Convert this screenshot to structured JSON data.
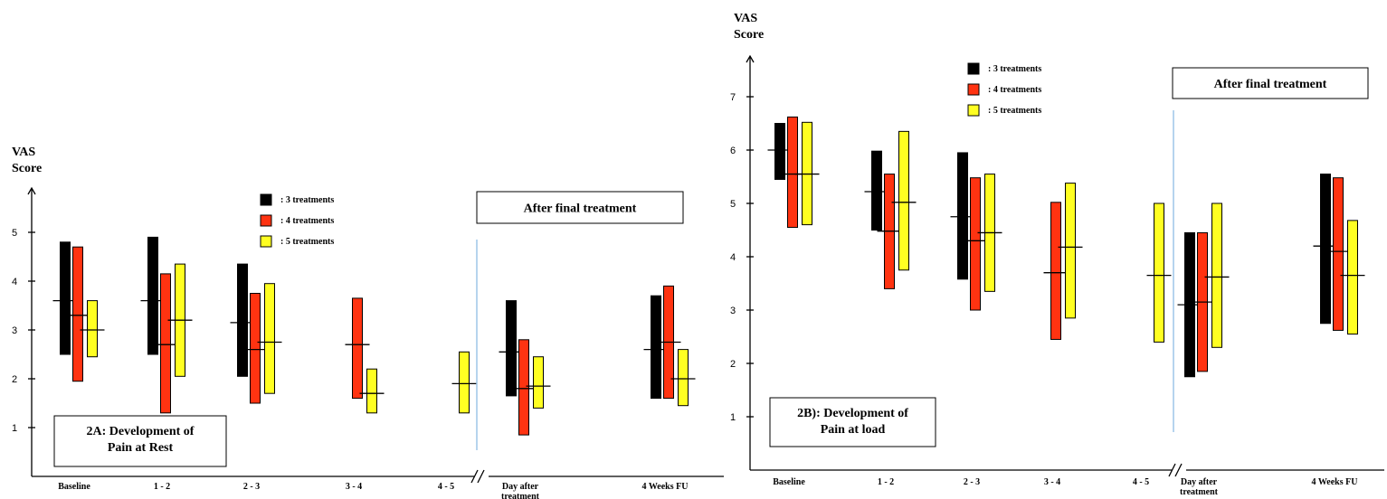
{
  "colors": {
    "three": "#000000",
    "four": "#ff3311",
    "five": "#ffff22"
  },
  "legend": [
    {
      "key": "three",
      "label": ": 3 treatments"
    },
    {
      "key": "four",
      "label": ": 4 treatments"
    },
    {
      "key": "five",
      "label": ": 5 treatments"
    }
  ],
  "chart_data": [
    {
      "type": "floating-bar",
      "panel_label": [
        "2A: Development of",
        "Pain at Rest"
      ],
      "ylabel": [
        "VAS",
        "Score"
      ],
      "yticks": [
        "1",
        "2",
        "3",
        "4",
        "5"
      ],
      "ylim": [
        0,
        5.5
      ],
      "categories": [
        [
          "Baseline"
        ],
        [
          "1 - 2"
        ],
        [
          "2 - 3"
        ],
        [
          "3 - 4"
        ],
        [
          "4 - 5"
        ],
        [
          "Day after",
          "treatment"
        ],
        [
          "4 Weeks FU"
        ]
      ],
      "annotation": "After final treatment",
      "series": [
        {
          "name": ": 3 treatments",
          "key": "three",
          "ranges": [
            [
              2.5,
              4.8
            ],
            [
              2.5,
              4.9
            ],
            [
              2.05,
              4.35
            ],
            null,
            null,
            [
              1.65,
              3.6
            ],
            [
              1.6,
              3.7
            ]
          ],
          "means": [
            3.6,
            3.6,
            3.15,
            null,
            null,
            2.55,
            2.6
          ]
        },
        {
          "name": ": 4 treatments",
          "key": "four",
          "ranges": [
            [
              1.95,
              4.7
            ],
            [
              1.3,
              4.15
            ],
            [
              1.5,
              3.75
            ],
            [
              1.6,
              3.65
            ],
            null,
            [
              0.85,
              2.8
            ],
            [
              1.6,
              3.9
            ]
          ],
          "means": [
            3.3,
            2.7,
            2.6,
            2.7,
            null,
            1.8,
            2.75
          ]
        },
        {
          "name": ": 5 treatments",
          "key": "five",
          "ranges": [
            [
              2.45,
              3.6
            ],
            [
              2.05,
              4.35
            ],
            [
              1.7,
              3.95
            ],
            [
              1.3,
              2.2
            ],
            [
              1.3,
              2.55
            ],
            [
              1.4,
              2.45
            ],
            [
              1.45,
              2.6
            ]
          ],
          "means": [
            3.0,
            3.2,
            2.75,
            1.7,
            1.9,
            1.85,
            2.0
          ]
        }
      ]
    },
    {
      "type": "floating-bar",
      "panel_label": [
        "2B): Development of",
        "Pain at load"
      ],
      "ylabel": [
        "VAS",
        "Score"
      ],
      "yticks": [
        "1",
        "2",
        "3",
        "4",
        "5",
        "6",
        "7"
      ],
      "ylim": [
        0,
        7.8
      ],
      "categories": [
        [
          "Baseline"
        ],
        [
          "1 - 2"
        ],
        [
          "2 - 3"
        ],
        [
          "3 - 4"
        ],
        [
          "4 - 5"
        ],
        [
          "Day after",
          "treatment"
        ],
        [
          "4 Weeks FU"
        ]
      ],
      "annotation": "After final treatment",
      "series": [
        {
          "name": ": 3 treatments",
          "key": "three",
          "ranges": [
            [
              5.45,
              6.5
            ],
            [
              4.5,
              5.98
            ],
            [
              3.58,
              5.95
            ],
            null,
            null,
            [
              1.75,
              4.45
            ],
            [
              2.75,
              5.55
            ]
          ],
          "means": [
            6.0,
            5.22,
            4.75,
            null,
            null,
            3.1,
            4.2
          ]
        },
        {
          "name": ": 4 treatments",
          "key": "four",
          "ranges": [
            [
              4.55,
              6.62
            ],
            [
              3.4,
              5.55
            ],
            [
              3.0,
              5.48
            ],
            [
              2.45,
              5.02
            ],
            null,
            [
              1.85,
              4.45
            ],
            [
              2.62,
              5.48
            ]
          ],
          "means": [
            5.55,
            4.48,
            4.3,
            3.7,
            null,
            3.15,
            4.1
          ]
        },
        {
          "name": ": 5 treatments",
          "key": "five",
          "ranges": [
            [
              4.6,
              6.52
            ],
            [
              3.75,
              6.35
            ],
            [
              3.35,
              5.55
            ],
            [
              2.85,
              5.38
            ],
            [
              2.4,
              5.0
            ],
            [
              2.3,
              5.0
            ],
            [
              2.55,
              4.68
            ]
          ],
          "means": [
            5.55,
            5.02,
            4.45,
            4.18,
            3.65,
            3.62,
            3.65
          ]
        }
      ]
    }
  ]
}
